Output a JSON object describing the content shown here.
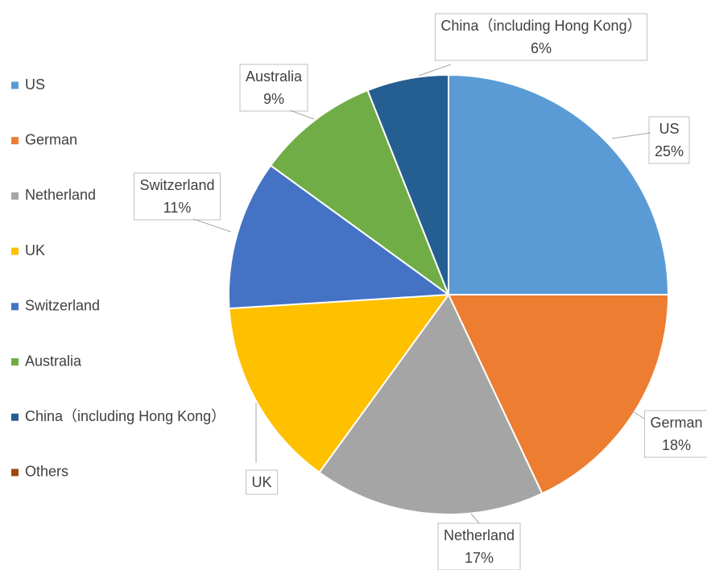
{
  "chart_data": {
    "type": "pie",
    "categories": [
      "US",
      "German",
      "Netherland",
      "UK",
      "Switzerland",
      "Australia",
      "China（including Hong Kong）",
      "Others"
    ],
    "values": [
      25,
      18,
      17,
      14,
      11,
      9,
      6,
      0
    ],
    "value_labels": [
      "25%",
      "18%",
      "17%",
      null,
      "11%",
      "9%",
      "6%",
      null
    ],
    "colors": [
      "#5b9bd5",
      "#ed7d31",
      "#a5a5a5",
      "#ffc000",
      "#4472c4",
      "#70ad47",
      "#255e91",
      "#9e480e"
    ],
    "legend": "left"
  }
}
